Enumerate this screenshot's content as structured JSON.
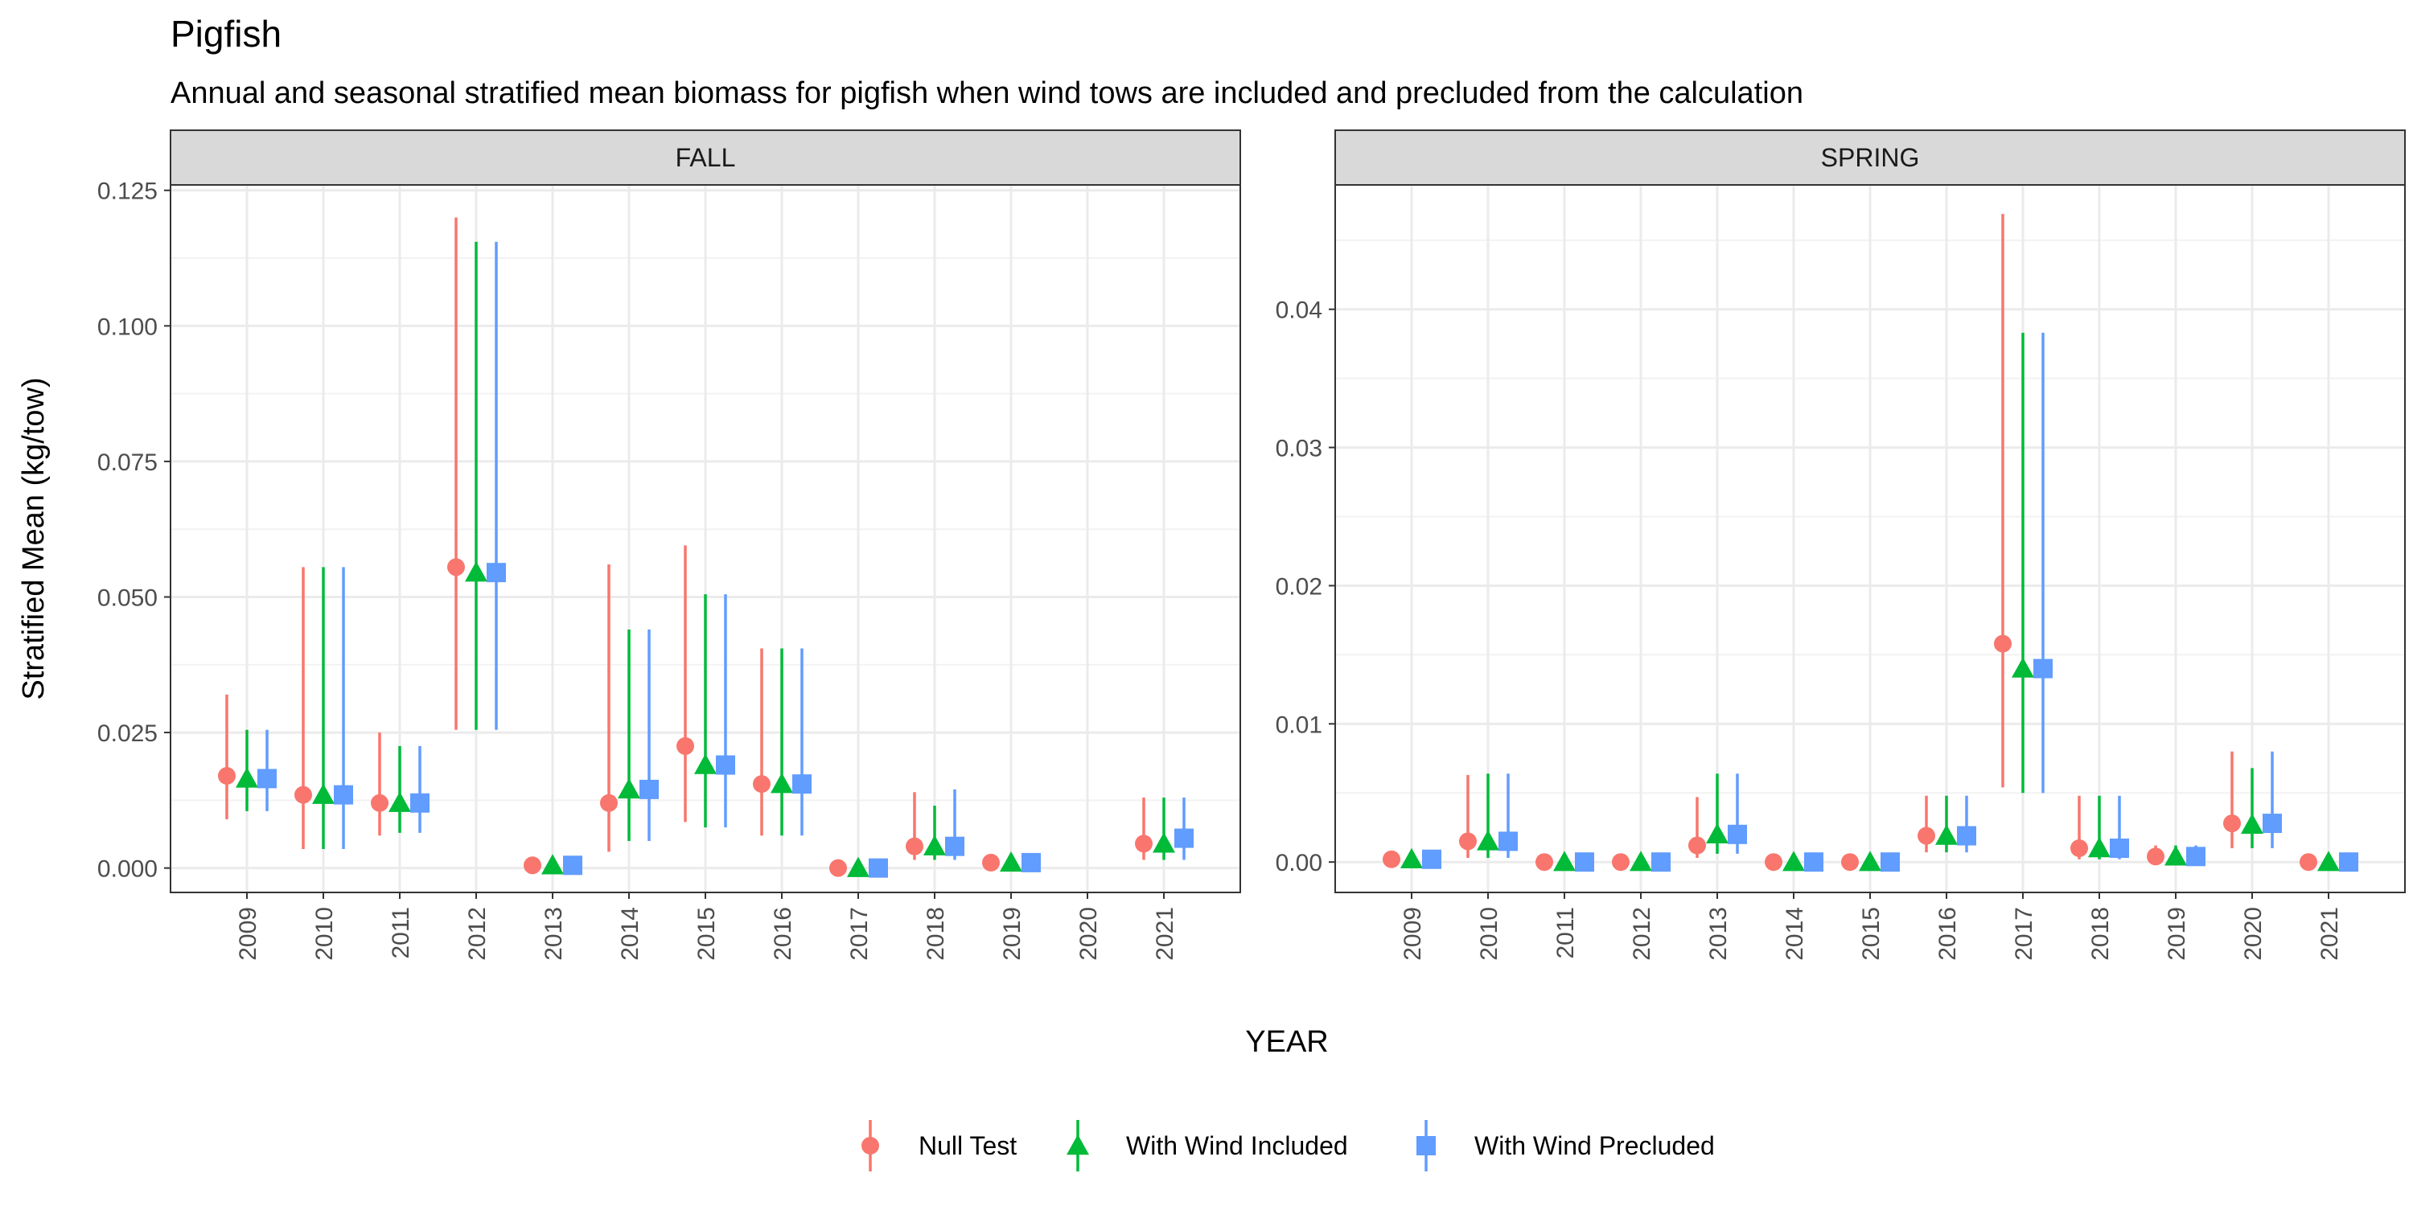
{
  "chart_data": {
    "type": "scatter",
    "title": "Pigfish",
    "subtitle": "Annual and seasonal stratified mean biomass for pigfish when wind tows are included and precluded from the calculation",
    "xlabel": "YEAR",
    "ylabel": "Stratified Mean (kg/tow)",
    "grid": true,
    "legend_position": "bottom",
    "categories": [
      "2009",
      "2010",
      "2011",
      "2012",
      "2013",
      "2014",
      "2015",
      "2016",
      "2017",
      "2018",
      "2019",
      "2020",
      "2021"
    ],
    "series_meta": [
      {
        "name": "Null Test",
        "color": "#F8766D",
        "shape": "circle"
      },
      {
        "name": "With Wind Included",
        "color": "#00BA38",
        "shape": "triangle"
      },
      {
        "name": "With Wind Precluded",
        "color": "#619CFF",
        "shape": "square"
      }
    ],
    "panels": [
      {
        "label": "FALL",
        "ylim": [
          -0.0045,
          0.126
        ],
        "yticks": [
          0.0,
          0.025,
          0.05,
          0.075,
          0.1,
          0.125
        ],
        "ytick_labels": [
          "0.000",
          "0.025",
          "0.050",
          "0.075",
          "0.100",
          "0.125"
        ],
        "series": [
          {
            "name": "Null Test",
            "points": [
              {
                "x": "2009",
                "y": 0.017,
                "lo": 0.009,
                "hi": 0.032
              },
              {
                "x": "2010",
                "y": 0.0135,
                "lo": 0.0035,
                "hi": 0.0555
              },
              {
                "x": "2011",
                "y": 0.012,
                "lo": 0.006,
                "hi": 0.025
              },
              {
                "x": "2012",
                "y": 0.0555,
                "lo": 0.0255,
                "hi": 0.12
              },
              {
                "x": "2013",
                "y": 0.0005,
                "lo": 0.0,
                "hi": 0.001
              },
              {
                "x": "2014",
                "y": 0.012,
                "lo": 0.003,
                "hi": 0.056
              },
              {
                "x": "2015",
                "y": 0.0225,
                "lo": 0.0085,
                "hi": 0.0595
              },
              {
                "x": "2016",
                "y": 0.0155,
                "lo": 0.006,
                "hi": 0.0405
              },
              {
                "x": "2017",
                "y": 0.0,
                "lo": 0.0,
                "hi": 0.0005
              },
              {
                "x": "2018",
                "y": 0.004,
                "lo": 0.0015,
                "hi": 0.014
              },
              {
                "x": "2019",
                "y": 0.001,
                "lo": 0.0002,
                "hi": 0.002
              },
              {
                "x": "2021",
                "y": 0.0045,
                "lo": 0.0015,
                "hi": 0.013
              }
            ]
          },
          {
            "name": "With Wind Included",
            "points": [
              {
                "x": "2009",
                "y": 0.0165,
                "lo": 0.0105,
                "hi": 0.0255
              },
              {
                "x": "2010",
                "y": 0.0135,
                "lo": 0.0035,
                "hi": 0.0555
              },
              {
                "x": "2011",
                "y": 0.012,
                "lo": 0.0065,
                "hi": 0.0225
              },
              {
                "x": "2012",
                "y": 0.0545,
                "lo": 0.0255,
                "hi": 0.1155
              },
              {
                "x": "2013",
                "y": 0.0005,
                "lo": 0.0,
                "hi": 0.001
              },
              {
                "x": "2014",
                "y": 0.0145,
                "lo": 0.005,
                "hi": 0.044
              },
              {
                "x": "2015",
                "y": 0.019,
                "lo": 0.0075,
                "hi": 0.0505
              },
              {
                "x": "2016",
                "y": 0.0155,
                "lo": 0.006,
                "hi": 0.0405
              },
              {
                "x": "2017",
                "y": 0.0,
                "lo": 0.0,
                "hi": 0.0005
              },
              {
                "x": "2018",
                "y": 0.004,
                "lo": 0.0015,
                "hi": 0.0115
              },
              {
                "x": "2019",
                "y": 0.001,
                "lo": 0.0002,
                "hi": 0.002
              },
              {
                "x": "2021",
                "y": 0.0045,
                "lo": 0.0015,
                "hi": 0.013
              }
            ]
          },
          {
            "name": "With Wind Precluded",
            "points": [
              {
                "x": "2009",
                "y": 0.0165,
                "lo": 0.0105,
                "hi": 0.0255
              },
              {
                "x": "2010",
                "y": 0.0135,
                "lo": 0.0035,
                "hi": 0.0555
              },
              {
                "x": "2011",
                "y": 0.012,
                "lo": 0.0065,
                "hi": 0.0225
              },
              {
                "x": "2012",
                "y": 0.0545,
                "lo": 0.0255,
                "hi": 0.1155
              },
              {
                "x": "2013",
                "y": 0.0005,
                "lo": 0.0,
                "hi": 0.001
              },
              {
                "x": "2014",
                "y": 0.0145,
                "lo": 0.005,
                "hi": 0.044
              },
              {
                "x": "2015",
                "y": 0.019,
                "lo": 0.0075,
                "hi": 0.0505
              },
              {
                "x": "2016",
                "y": 0.0155,
                "lo": 0.006,
                "hi": 0.0405
              },
              {
                "x": "2017",
                "y": 0.0,
                "lo": 0.0,
                "hi": 0.0005
              },
              {
                "x": "2018",
                "y": 0.004,
                "lo": 0.0015,
                "hi": 0.0145
              },
              {
                "x": "2019",
                "y": 0.001,
                "lo": 0.0002,
                "hi": 0.002
              },
              {
                "x": "2021",
                "y": 0.0055,
                "lo": 0.0015,
                "hi": 0.013
              }
            ]
          }
        ]
      },
      {
        "label": "SPRING",
        "ylim": [
          -0.0022,
          0.049
        ],
        "yticks": [
          0.0,
          0.01,
          0.02,
          0.03,
          0.04
        ],
        "ytick_labels": [
          "0.00",
          "0.01",
          "0.02",
          "0.03",
          "0.04"
        ],
        "series": [
          {
            "name": "Null Test",
            "points": [
              {
                "x": "2009",
                "y": 0.0002,
                "lo": 0.0,
                "hi": 0.0005
              },
              {
                "x": "2010",
                "y": 0.0015,
                "lo": 0.0003,
                "hi": 0.0063
              },
              {
                "x": "2011",
                "y": 0.0,
                "lo": 0.0,
                "hi": 0.0002
              },
              {
                "x": "2012",
                "y": 0.0,
                "lo": 0.0,
                "hi": 0.0002
              },
              {
                "x": "2013",
                "y": 0.0012,
                "lo": 0.0003,
                "hi": 0.0047
              },
              {
                "x": "2014",
                "y": 0.0,
                "lo": 0.0,
                "hi": 0.0002
              },
              {
                "x": "2015",
                "y": 0.0,
                "lo": 0.0,
                "hi": 0.0002
              },
              {
                "x": "2016",
                "y": 0.0019,
                "lo": 0.0007,
                "hi": 0.0048
              },
              {
                "x": "2017",
                "y": 0.0158,
                "lo": 0.0054,
                "hi": 0.0469
              },
              {
                "x": "2018",
                "y": 0.001,
                "lo": 0.0002,
                "hi": 0.0048
              },
              {
                "x": "2019",
                "y": 0.0004,
                "lo": 0.0,
                "hi": 0.0012
              },
              {
                "x": "2020",
                "y": 0.0028,
                "lo": 0.001,
                "hi": 0.008
              },
              {
                "x": "2021",
                "y": 0.0,
                "lo": 0.0,
                "hi": 0.0002
              }
            ]
          },
          {
            "name": "With Wind Included",
            "points": [
              {
                "x": "2009",
                "y": 0.0002,
                "lo": 0.0,
                "hi": 0.0005
              },
              {
                "x": "2010",
                "y": 0.0015,
                "lo": 0.0003,
                "hi": 0.0064
              },
              {
                "x": "2011",
                "y": 0.0,
                "lo": 0.0,
                "hi": 0.0002
              },
              {
                "x": "2012",
                "y": 0.0,
                "lo": 0.0,
                "hi": 0.0002
              },
              {
                "x": "2013",
                "y": 0.002,
                "lo": 0.0006,
                "hi": 0.0064
              },
              {
                "x": "2014",
                "y": 0.0,
                "lo": 0.0,
                "hi": 0.0002
              },
              {
                "x": "2015",
                "y": 0.0,
                "lo": 0.0,
                "hi": 0.0002
              },
              {
                "x": "2016",
                "y": 0.0019,
                "lo": 0.0007,
                "hi": 0.0048
              },
              {
                "x": "2017",
                "y": 0.014,
                "lo": 0.005,
                "hi": 0.0383
              },
              {
                "x": "2018",
                "y": 0.001,
                "lo": 0.0002,
                "hi": 0.0048
              },
              {
                "x": "2019",
                "y": 0.0004,
                "lo": 0.0,
                "hi": 0.0012
              },
              {
                "x": "2020",
                "y": 0.0027,
                "lo": 0.001,
                "hi": 0.0068
              },
              {
                "x": "2021",
                "y": 0.0,
                "lo": 0.0,
                "hi": 0.0002
              }
            ]
          },
          {
            "name": "With Wind Precluded",
            "points": [
              {
                "x": "2009",
                "y": 0.0002,
                "lo": 0.0,
                "hi": 0.0005
              },
              {
                "x": "2010",
                "y": 0.0015,
                "lo": 0.0003,
                "hi": 0.0064
              },
              {
                "x": "2011",
                "y": 0.0,
                "lo": 0.0,
                "hi": 0.0002
              },
              {
                "x": "2012",
                "y": 0.0,
                "lo": 0.0,
                "hi": 0.0002
              },
              {
                "x": "2013",
                "y": 0.002,
                "lo": 0.0006,
                "hi": 0.0064
              },
              {
                "x": "2014",
                "y": 0.0,
                "lo": 0.0,
                "hi": 0.0002
              },
              {
                "x": "2015",
                "y": 0.0,
                "lo": 0.0,
                "hi": 0.0002
              },
              {
                "x": "2016",
                "y": 0.0019,
                "lo": 0.0007,
                "hi": 0.0048
              },
              {
                "x": "2017",
                "y": 0.014,
                "lo": 0.005,
                "hi": 0.0383
              },
              {
                "x": "2018",
                "y": 0.001,
                "lo": 0.0002,
                "hi": 0.0048
              },
              {
                "x": "2019",
                "y": 0.0004,
                "lo": 0.0,
                "hi": 0.0012
              },
              {
                "x": "2020",
                "y": 0.0028,
                "lo": 0.001,
                "hi": 0.008
              },
              {
                "x": "2021",
                "y": 0.0,
                "lo": 0.0,
                "hi": 0.0002
              }
            ]
          }
        ]
      }
    ]
  }
}
